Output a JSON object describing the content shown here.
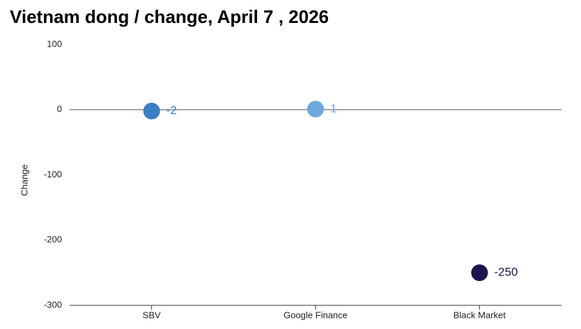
{
  "chart_data": {
    "type": "dot",
    "title": "Vietnam dong / change, April 7 , 2026",
    "y_label": "Change",
    "categories": [
      "SBV",
      "Google Finance",
      "Black Market"
    ],
    "values": [
      -2,
      1,
      -250
    ],
    "colors": [
      "#3b7fc4",
      "#6fa8dc",
      "#1c1650"
    ],
    "ylim": [
      -300,
      100
    ],
    "yticks": [
      -300,
      -200,
      -100,
      0,
      100
    ]
  }
}
